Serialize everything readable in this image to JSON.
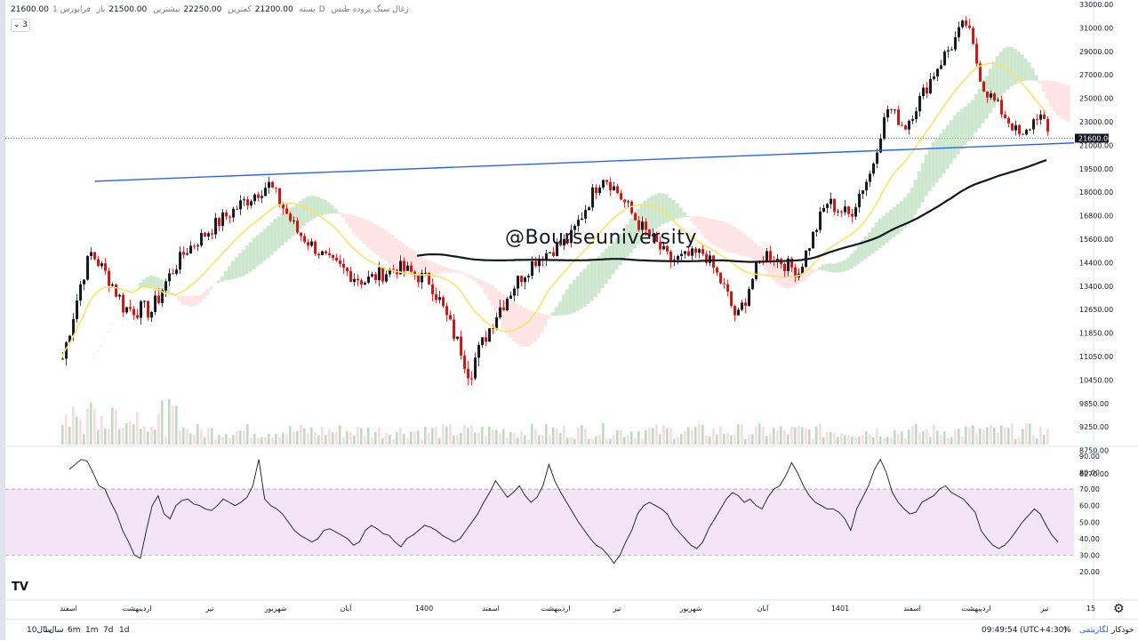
{
  "legend": {
    "symbol": "زغال سنگ پروده طبس",
    "interval": "1D",
    "exchange": "فرابورس",
    "open_label": "باز",
    "open": "21500.00",
    "high_label": "بیشترین",
    "high": "22250.00",
    "low_label": "کمترین",
    "low": "21200.00",
    "close_label": "بسته",
    "close": "21600.00",
    "indicator_count": "3"
  },
  "watermark": "@Bourseuniversity",
  "chart_data": [
    {
      "type": "candlestick",
      "title": "",
      "price_axis": [
        "33000.00",
        "31000.00",
        "29000.00",
        "27000.00",
        "25000.00",
        "23000.00",
        "21000.00",
        "19500.00",
        "18000.00",
        "16800.00",
        "15600.00",
        "14400.00",
        "13400.00",
        "12650.00",
        "11850.00",
        "11050.00",
        "10450.00",
        "9850.00",
        "9250.00",
        "8750.00",
        "8270.00"
      ],
      "last_price": "21600.00",
      "time_axis": [
        "اسفند",
        "اردیبهشت",
        "تیر",
        "شهریور",
        "آبان",
        "1400",
        "اسفند",
        "اردیبهشت",
        "تیر",
        "شهریور",
        "آبان",
        "1401",
        "اسفند",
        "اردیبهشت",
        "تیر",
        "15"
      ],
      "close_path": [
        {
          "d": "1399-11-20",
          "v": 11000
        },
        {
          "d": "1399-12-15",
          "v": 14900
        },
        {
          "d": "1400-01-15",
          "v": 12700
        },
        {
          "d": "1400-02-10",
          "v": 12600
        },
        {
          "d": "1400-03-10",
          "v": 15000
        },
        {
          "d": "1400-04-10",
          "v": 16500
        },
        {
          "d": "1400-05-25",
          "v": 18500
        },
        {
          "d": "1400-06-20",
          "v": 16000
        },
        {
          "d": "1400-07-20",
          "v": 14400
        },
        {
          "d": "1400-08-20",
          "v": 13600
        },
        {
          "d": "1400-09-20",
          "v": 14200
        },
        {
          "d": "1400-10-20",
          "v": 13600
        },
        {
          "d": "1400-11-25",
          "v": 10600
        },
        {
          "d": "1400-12-20",
          "v": 12600
        },
        {
          "d": "1401-01-25",
          "v": 14600
        },
        {
          "d": "1401-02-25",
          "v": 15600
        },
        {
          "d": "1401-03-25",
          "v": 19100
        },
        {
          "d": "1401-04-25",
          "v": 16500
        },
        {
          "d": "1401-05-25",
          "v": 14500
        },
        {
          "d": "1401-06-25",
          "v": 14900
        },
        {
          "d": "1401-07-25",
          "v": 12300
        },
        {
          "d": "1401-08-20",
          "v": 14900
        },
        {
          "d": "1401-09-20",
          "v": 14000
        },
        {
          "d": "1401-10-15",
          "v": 17500
        },
        {
          "d": "1401-11-05",
          "v": 16800
        },
        {
          "d": "1401-11-25",
          "v": 19300
        },
        {
          "d": "1401-12-10",
          "v": 24300
        },
        {
          "d": "1401-12-25",
          "v": 22500
        },
        {
          "d": "1402-01-25",
          "v": 27800
        },
        {
          "d": "1402-02-20",
          "v": 31400
        },
        {
          "d": "1402-03-05",
          "v": 26000
        },
        {
          "d": "1402-03-25",
          "v": 23500
        },
        {
          "d": "1402-04-10",
          "v": 21500
        },
        {
          "d": "1402-04-25",
          "v": 23800
        },
        {
          "d": "1402-05-05",
          "v": 21600
        }
      ],
      "trendline": [
        {
          "d": "1399-12-20",
          "v": 18700
        },
        {
          "d": "1402-05-15",
          "v": 21200
        }
      ],
      "colors": {
        "up": "#131722",
        "down": "#ff0000",
        "trend": "#2962ff",
        "ma_long": "#131722",
        "ma_short": "#f5e663",
        "cloud_up": "#a5d6a7",
        "cloud_down": "#ffcdd2"
      }
    },
    {
      "type": "line",
      "title": "",
      "axis": [
        "90.00",
        "80.00",
        "70.00",
        "60.00",
        "50.00",
        "40.00",
        "30.00",
        "20.00"
      ],
      "band": [
        30,
        70
      ],
      "band_color": "#f3e5f5",
      "values": [
        82,
        85,
        88,
        87,
        80,
        72,
        70,
        62,
        55,
        45,
        38,
        30,
        28,
        45,
        60,
        66,
        55,
        52,
        60,
        63,
        64,
        61,
        60,
        58,
        57,
        60,
        64,
        62,
        60,
        62,
        65,
        72,
        88,
        64,
        60,
        58,
        55,
        50,
        45,
        42,
        40,
        38,
        40,
        45,
        46,
        44,
        42,
        40,
        36,
        38,
        45,
        48,
        46,
        43,
        42,
        38,
        35,
        40,
        42,
        45,
        48,
        47,
        45,
        42,
        40,
        38,
        40,
        45,
        50,
        55,
        62,
        68,
        75,
        70,
        65,
        68,
        72,
        66,
        62,
        65,
        72,
        85,
        75,
        68,
        62,
        56,
        50,
        45,
        40,
        36,
        34,
        30,
        25,
        30,
        38,
        45,
        55,
        60,
        62,
        60,
        58,
        55,
        48,
        44,
        40,
        36,
        34,
        38,
        46,
        52,
        58,
        64,
        68,
        66,
        62,
        64,
        60,
        58,
        65,
        70,
        72,
        78,
        86,
        80,
        72,
        66,
        62,
        60,
        58,
        58,
        56,
        52,
        45,
        58,
        65,
        72,
        82,
        88,
        80,
        68,
        62,
        58,
        55,
        56,
        62,
        64,
        66,
        70,
        72,
        68,
        66,
        64,
        60,
        56,
        45,
        40,
        36,
        34,
        36,
        40,
        45,
        50,
        54,
        58,
        55,
        48,
        42,
        38
      ]
    }
  ],
  "bottom_bar": {
    "ranges": [
      "10سال",
      "1سال",
      "6m",
      "1m",
      "7d",
      "1d"
    ],
    "clock": "09:49:54 (UTC+4:30)",
    "percent": "%",
    "log": "لگاریتمی",
    "auto": "خودکار"
  }
}
